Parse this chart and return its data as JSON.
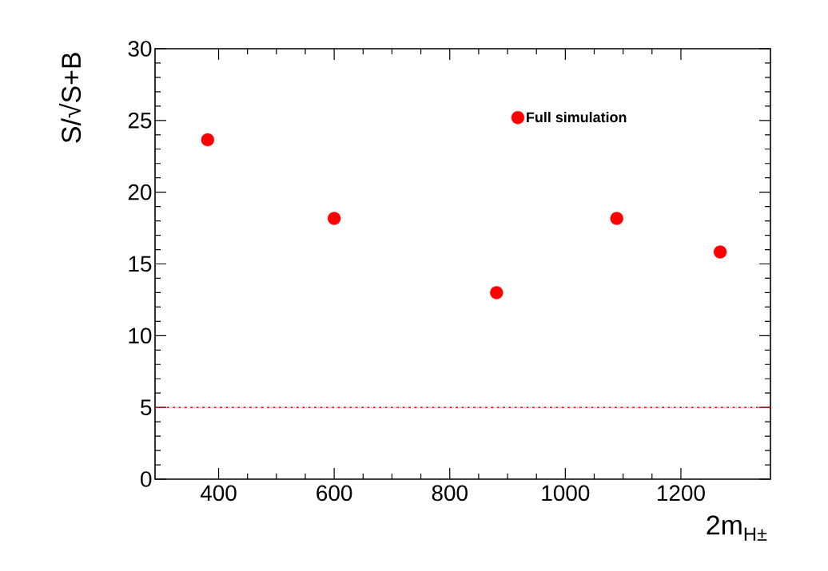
{
  "chart_data": {
    "type": "scatter",
    "xlabel": "2m$_{H±}$",
    "ylabel": "S/√S+B",
    "x": [
      381,
      600,
      881,
      1089,
      1268
    ],
    "series": [
      {
        "name": "Full simulation",
        "color": "#ff0000",
        "values": [
          23.65,
          18.17,
          13.0,
          18.17,
          15.83
        ]
      }
    ],
    "xlim": [
      290,
      1355
    ],
    "xticks": [
      400,
      600,
      800,
      1000,
      1200
    ],
    "ylim": [
      0,
      30
    ],
    "yticks": [
      0,
      5,
      10,
      15,
      20,
      25,
      30
    ],
    "ref_lines": [
      {
        "axis": "y",
        "value": 5,
        "color": "#ff0000",
        "line_style": "dashdot"
      }
    ],
    "legend": "top right",
    "grid": false
  }
}
